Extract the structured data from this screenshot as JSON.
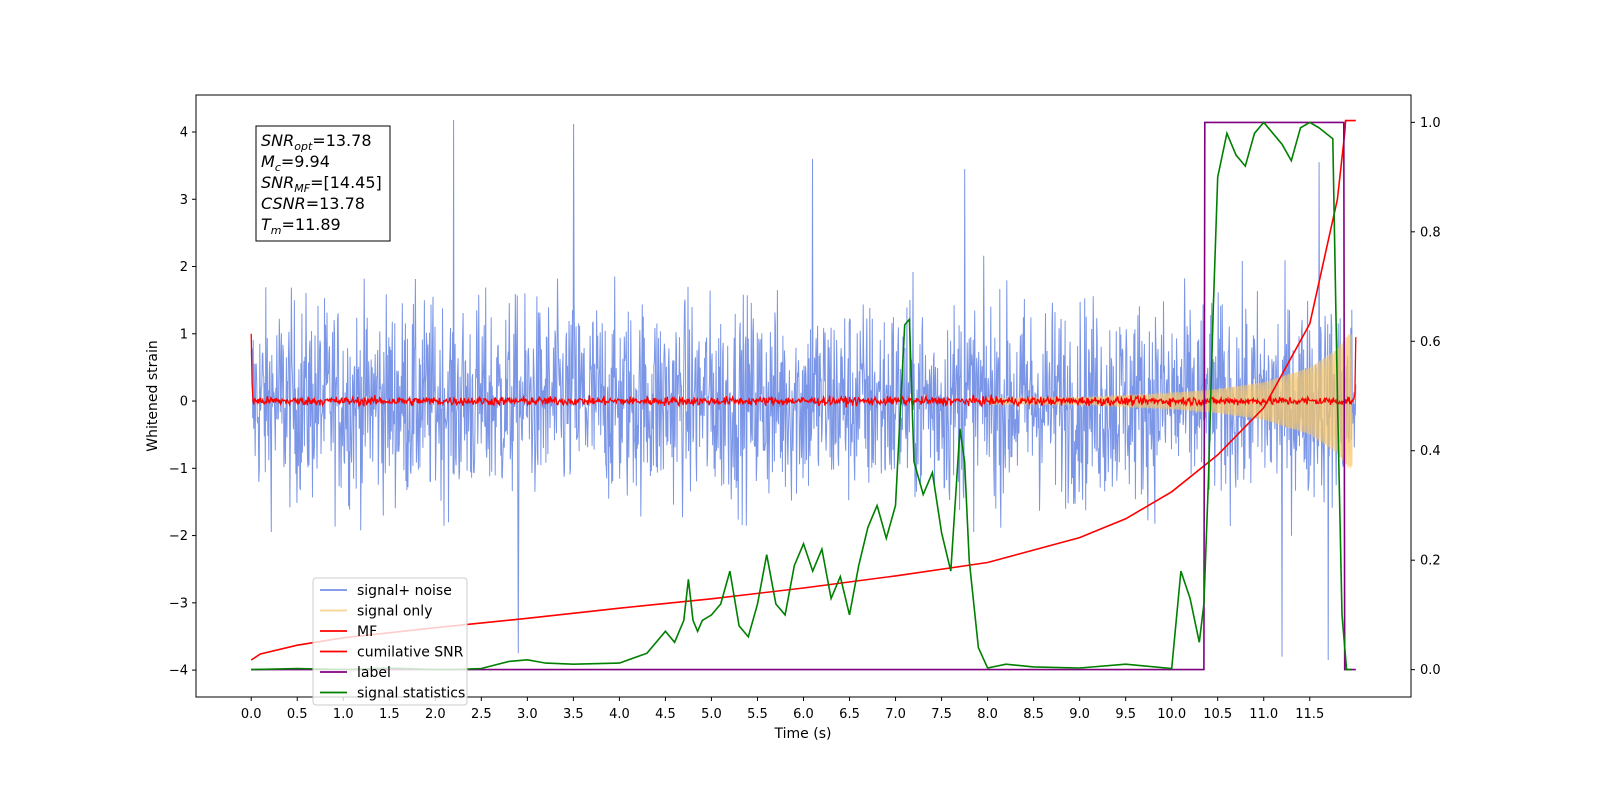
{
  "chart_data": {
    "type": "line",
    "title": "",
    "xlabel": "Time (s)",
    "ylabel": "Whitened strain",
    "y2label": "",
    "xlim": [
      -0.6,
      12.6
    ],
    "ylim": [
      -4.4,
      4.55
    ],
    "y2lim": [
      -0.05,
      1.05
    ],
    "x_ticks": [
      "0.0",
      "0.5",
      "1.0",
      "1.5",
      "2.0",
      "2.5",
      "3.0",
      "3.5",
      "4.0",
      "4.5",
      "5.0",
      "5.5",
      "6.0",
      "6.5",
      "7.0",
      "7.5",
      "8.0",
      "8.5",
      "9.0",
      "9.5",
      "10.0",
      "10.5",
      "11.0",
      "11.5"
    ],
    "y_ticks": [
      "4",
      "3",
      "2",
      "1",
      "0",
      "−1",
      "−2",
      "−3",
      "−4"
    ],
    "y2_ticks": [
      "1.0",
      "0.8",
      "0.6",
      "0.4",
      "0.2",
      "0.0"
    ],
    "grid": false,
    "legend_position": "lower-left",
    "info_box": [
      {
        "label": "SNR",
        "sub": "opt",
        "value": "=13.78"
      },
      {
        "label": "M",
        "sub": "c",
        "value": "=9.94"
      },
      {
        "label": "SNR",
        "sub": "MF",
        "value": "=[14.45]"
      },
      {
        "label": "CSNR",
        "sub": "",
        "value": "=13.78"
      },
      {
        "label": "T",
        "sub": "m",
        "value": "=11.89"
      }
    ],
    "series": [
      {
        "name": "signal+ noise",
        "axis": "left",
        "color": "#7490e6",
        "t_range": [
          0.0,
          12.0
        ],
        "envelope_upper_typical": 2.3,
        "envelope_lower_typical": -2.2,
        "peaks": [
          {
            "x": 2.2,
            "y": 4.18
          },
          {
            "x": 3.5,
            "y": 4.12
          },
          {
            "x": 6.1,
            "y": 3.6
          },
          {
            "x": 7.75,
            "y": 3.45
          },
          {
            "x": 11.6,
            "y": 3.55
          },
          {
            "x": 2.9,
            "y": -3.75
          },
          {
            "x": 11.2,
            "y": -3.8
          },
          {
            "x": 11.7,
            "y": -3.85
          }
        ]
      },
      {
        "name": "signal only",
        "axis": "left",
        "color": "#f5c56b",
        "envelope": [
          {
            "x": 9.0,
            "amp": 0.05
          },
          {
            "x": 10.0,
            "amp": 0.12
          },
          {
            "x": 10.5,
            "amp": 0.18
          },
          {
            "x": 11.0,
            "amp": 0.28
          },
          {
            "x": 11.5,
            "amp": 0.5
          },
          {
            "x": 11.8,
            "amp": 0.78
          },
          {
            "x": 11.92,
            "amp": 1.0
          },
          {
            "x": 12.0,
            "amp": 1.0
          }
        ]
      },
      {
        "name": "MF",
        "axis": "left",
        "color": "#ff0000",
        "noise_amplitude": 0.06,
        "start_value": 1.0,
        "end_value": 0.95
      },
      {
        "name": "cumilative SNR",
        "axis": "left",
        "color": "#ff0000",
        "x": [
          0.0,
          0.1,
          0.5,
          1.0,
          2.0,
          3.0,
          4.0,
          5.0,
          6.0,
          7.0,
          8.0,
          9.0,
          9.5,
          10.0,
          10.5,
          11.0,
          11.5,
          11.8,
          11.88,
          11.89,
          12.0
        ],
        "y": [
          -3.85,
          -3.76,
          -3.63,
          -3.52,
          -3.37,
          -3.23,
          -3.08,
          -2.94,
          -2.78,
          -2.6,
          -2.4,
          -2.03,
          -1.75,
          -1.35,
          -0.8,
          -0.1,
          1.15,
          3.0,
          3.98,
          4.17,
          4.17
        ]
      },
      {
        "name": "label",
        "axis": "right",
        "color": "#800080",
        "x": [
          0.0,
          10.35,
          10.36,
          11.87,
          11.88,
          12.0
        ],
        "y": [
          0.0,
          0.0,
          1.0,
          1.0,
          0.0,
          0.0
        ]
      },
      {
        "name": "signal statistics",
        "axis": "right",
        "color": "#008000",
        "x": [
          0.0,
          0.5,
          1.0,
          1.5,
          2.0,
          2.2,
          2.5,
          2.8,
          3.0,
          3.2,
          3.5,
          4.0,
          4.3,
          4.5,
          4.6,
          4.7,
          4.75,
          4.8,
          4.85,
          4.9,
          5.0,
          5.1,
          5.2,
          5.3,
          5.4,
          5.5,
          5.6,
          5.7,
          5.8,
          5.9,
          6.0,
          6.1,
          6.2,
          6.3,
          6.4,
          6.5,
          6.6,
          6.7,
          6.8,
          6.9,
          7.0,
          7.1,
          7.15,
          7.2,
          7.3,
          7.4,
          7.5,
          7.6,
          7.7,
          7.75,
          7.8,
          7.9,
          8.0,
          8.2,
          8.5,
          9.0,
          9.5,
          10.0,
          10.1,
          10.2,
          10.3,
          10.35,
          10.4,
          10.45,
          10.5,
          10.6,
          10.7,
          10.8,
          10.9,
          11.0,
          11.1,
          11.2,
          11.3,
          11.4,
          11.5,
          11.6,
          11.75,
          11.8,
          11.85,
          11.9,
          11.95
        ],
        "y": [
          0.0,
          0.002,
          0.0,
          0.003,
          0.0,
          0.0,
          0.002,
          0.015,
          0.018,
          0.012,
          0.01,
          0.012,
          0.03,
          0.07,
          0.05,
          0.09,
          0.165,
          0.09,
          0.07,
          0.09,
          0.1,
          0.12,
          0.18,
          0.08,
          0.06,
          0.12,
          0.21,
          0.12,
          0.1,
          0.19,
          0.23,
          0.18,
          0.22,
          0.13,
          0.17,
          0.1,
          0.19,
          0.26,
          0.3,
          0.24,
          0.3,
          0.63,
          0.64,
          0.38,
          0.32,
          0.36,
          0.25,
          0.18,
          0.44,
          0.38,
          0.2,
          0.04,
          0.003,
          0.01,
          0.005,
          0.003,
          0.01,
          0.002,
          0.18,
          0.13,
          0.05,
          0.12,
          0.35,
          0.65,
          0.9,
          0.98,
          0.94,
          0.92,
          0.98,
          1.0,
          0.98,
          0.96,
          0.93,
          0.99,
          1.0,
          0.99,
          0.97,
          0.5,
          0.1,
          0.0,
          0.0
        ]
      }
    ]
  }
}
